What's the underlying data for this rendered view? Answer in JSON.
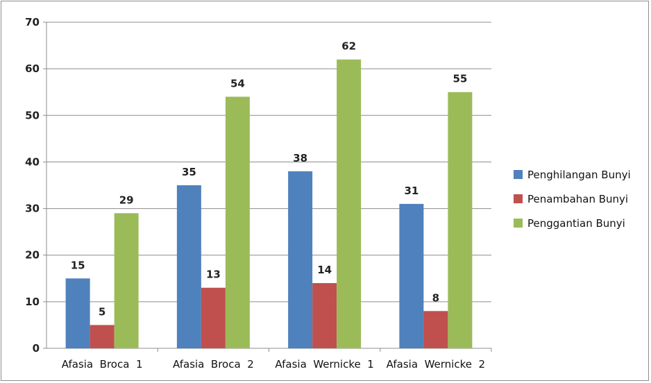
{
  "chart_data": {
    "type": "bar",
    "categories": [
      "Afasia  Broca  1",
      "Afasia  Broca  2",
      "Afasia  Wernicke  1",
      "Afasia  Wernicke  2"
    ],
    "series": [
      {
        "name": "Penghilangan Bunyi",
        "values": [
          15,
          35,
          38,
          31
        ],
        "color": "#4f81bd"
      },
      {
        "name": "Penambahan Bunyi",
        "values": [
          5,
          13,
          14,
          8
        ],
        "color": "#c0504d"
      },
      {
        "name": "Penggantian Bunyi",
        "values": [
          29,
          54,
          62,
          55
        ],
        "color": "#9bbb59"
      }
    ],
    "ylim": [
      0,
      70
    ],
    "yticks": [
      0,
      10,
      20,
      30,
      40,
      50,
      60,
      70
    ],
    "grid": true,
    "legend_position": "right",
    "title": "",
    "xlabel": "",
    "ylabel": ""
  }
}
